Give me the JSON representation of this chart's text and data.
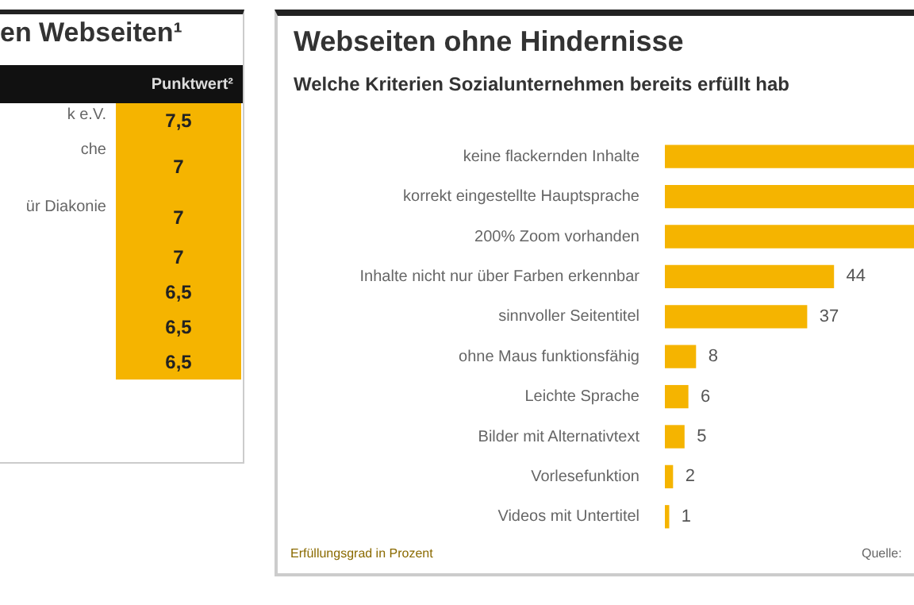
{
  "chart_data": [
    {
      "type": "other",
      "title": "en Webseiten¹",
      "legend_title": "Punktwert²",
      "categories": [
        "k e.V.",
        "che",
        "ür Diakonie",
        null,
        null,
        null,
        null
      ],
      "values": [
        7.5,
        7,
        7,
        7,
        6.5,
        6.5,
        6.5
      ],
      "value_labels": [
        "7,5",
        "7",
        "7",
        "7",
        "6,5",
        "6,5",
        "6,5"
      ],
      "color": "#f5b400"
    },
    {
      "type": "bar",
      "orientation": "horizontal",
      "title": "Webseiten ohne Hindernisse",
      "subtitle": "Welche Kriterien Sozialunternehmen bereits erfüllt hab",
      "categories": [
        "keine flackernden Inhalte",
        "korrekt eingestellte Hauptsprache",
        "200% Zoom vorhanden",
        "Inhalte nicht nur über Farben erkennbar",
        "sinnvoller Seitentitel",
        "ohne Maus funktionsfähig",
        "Leichte Sprache",
        "Bilder mit Alternativtext",
        "Vorlesefunktion",
        "Videos mit Untertitel"
      ],
      "values": [
        65,
        65,
        65,
        44,
        37,
        8,
        6,
        5,
        2,
        1
      ],
      "value_labels": [
        null,
        null,
        null,
        "44",
        "37",
        "8",
        "6",
        "5",
        "2",
        "1"
      ],
      "color": "#f5b400",
      "xlim": [
        0,
        65
      ],
      "annotations": [
        "Erfüllungsgrad in Prozent",
        "Quelle:"
      ]
    }
  ]
}
